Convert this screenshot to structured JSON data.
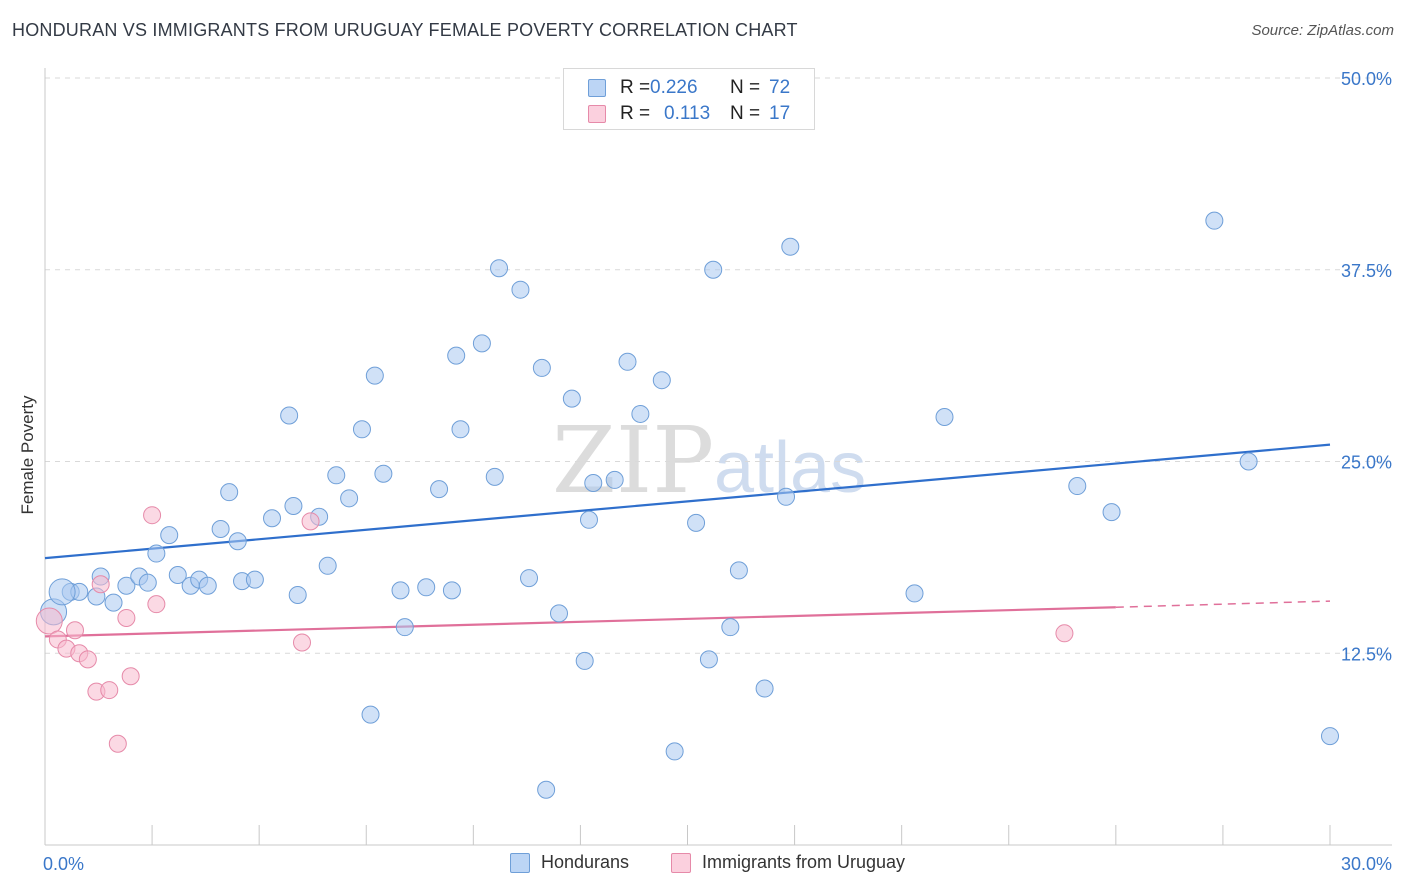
{
  "title": "HONDURAN VS IMMIGRANTS FROM URUGUAY FEMALE POVERTY CORRELATION CHART",
  "source": "Source: ZipAtlas.com",
  "watermark": {
    "zip": "ZIP",
    "atlas": "atlas"
  },
  "legend_top": {
    "rows": [
      {
        "r_label": "R =",
        "r_value": "0.226",
        "n_label": "N =",
        "n_value": "72",
        "color": "#a9c8f0"
      },
      {
        "r_label": "R =",
        "r_value": "0.113",
        "n_label": "N =",
        "n_value": "17",
        "color": "#f7b9ce"
      }
    ]
  },
  "legend_bottom": [
    {
      "label": "Hondurans",
      "color": "#a9c8f0"
    },
    {
      "label": "Immigrants from Uruguay",
      "color": "#f7b9ce"
    }
  ],
  "chart_data": {
    "type": "scatter",
    "title": "HONDURAN VS IMMIGRANTS FROM URUGUAY FEMALE POVERTY CORRELATION CHART",
    "xlabel": "",
    "ylabel": "Female Poverty",
    "xlim": [
      0,
      30
    ],
    "ylim": [
      0,
      50
    ],
    "x_tick_labels": [
      "0.0%",
      "30.0%"
    ],
    "y_ticks": [
      12.5,
      25.0,
      37.5,
      50.0
    ],
    "y_tick_labels": [
      "12.5%",
      "25.0%",
      "37.5%",
      "50.0%"
    ],
    "grid": true,
    "series": [
      {
        "name": "Hondurans",
        "color": "#a9c8f0",
        "stroke": "#6f9fd8",
        "trend": {
          "x": [
            0,
            30
          ],
          "y": [
            18.7,
            26.1
          ],
          "color": "#2f6fcc"
        },
        "points": [
          [
            0.2,
            15.2
          ],
          [
            0.6,
            16.5
          ],
          [
            0.8,
            16.5
          ],
          [
            1.2,
            16.2
          ],
          [
            1.3,
            17.5
          ],
          [
            1.6,
            15.8
          ],
          [
            1.9,
            16.9
          ],
          [
            2.2,
            17.5
          ],
          [
            2.4,
            17.1
          ],
          [
            2.6,
            19.0
          ],
          [
            2.9,
            20.2
          ],
          [
            3.1,
            17.6
          ],
          [
            3.4,
            16.9
          ],
          [
            3.6,
            17.3
          ],
          [
            3.8,
            16.9
          ],
          [
            4.1,
            20.6
          ],
          [
            4.3,
            23.0
          ],
          [
            4.5,
            19.8
          ],
          [
            4.6,
            17.2
          ],
          [
            4.9,
            17.3
          ],
          [
            5.3,
            21.3
          ],
          [
            5.7,
            28.0
          ],
          [
            5.8,
            22.1
          ],
          [
            5.9,
            16.3
          ],
          [
            6.4,
            21.4
          ],
          [
            6.6,
            18.2
          ],
          [
            6.8,
            24.1
          ],
          [
            7.1,
            22.6
          ],
          [
            7.4,
            27.1
          ],
          [
            7.6,
            8.5
          ],
          [
            7.7,
            30.6
          ],
          [
            7.9,
            24.2
          ],
          [
            8.3,
            16.6
          ],
          [
            8.4,
            14.2
          ],
          [
            8.9,
            16.8
          ],
          [
            9.2,
            23.2
          ],
          [
            9.5,
            16.6
          ],
          [
            9.6,
            31.9
          ],
          [
            9.7,
            27.1
          ],
          [
            10.2,
            32.7
          ],
          [
            10.5,
            24.0
          ],
          [
            10.6,
            37.6
          ],
          [
            11.1,
            36.2
          ],
          [
            11.3,
            17.4
          ],
          [
            11.6,
            31.1
          ],
          [
            11.7,
            3.6
          ],
          [
            12.0,
            15.1
          ],
          [
            12.3,
            29.1
          ],
          [
            12.6,
            12.0
          ],
          [
            12.7,
            21.2
          ],
          [
            12.8,
            23.6
          ],
          [
            13.3,
            23.8
          ],
          [
            13.6,
            31.5
          ],
          [
            13.9,
            28.1
          ],
          [
            14.4,
            30.3
          ],
          [
            14.7,
            6.1
          ],
          [
            15.2,
            21.0
          ],
          [
            15.5,
            12.1
          ],
          [
            15.6,
            37.5
          ],
          [
            16.0,
            14.2
          ],
          [
            16.2,
            17.9
          ],
          [
            16.8,
            10.2
          ],
          [
            17.3,
            22.7
          ],
          [
            17.4,
            39.0
          ],
          [
            20.3,
            16.4
          ],
          [
            21.0,
            27.9
          ],
          [
            24.1,
            23.4
          ],
          [
            24.9,
            21.7
          ],
          [
            27.3,
            40.7
          ],
          [
            28.1,
            25.0
          ],
          [
            30.0,
            7.1
          ],
          [
            0.4,
            16.5
          ]
        ]
      },
      {
        "name": "Immigrants from Uruguay",
        "color": "#f7b9ce",
        "stroke": "#e68aa9",
        "trend": {
          "x": [
            0,
            25
          ],
          "y": [
            13.6,
            15.5
          ],
          "x_dashed_to": 30,
          "y_dashed_to": 15.9,
          "color": "#e0709a"
        },
        "points": [
          [
            0.1,
            14.6
          ],
          [
            0.3,
            13.4
          ],
          [
            0.5,
            12.8
          ],
          [
            0.7,
            14.0
          ],
          [
            0.8,
            12.5
          ],
          [
            1.0,
            12.1
          ],
          [
            1.2,
            10.0
          ],
          [
            1.3,
            17.0
          ],
          [
            1.5,
            10.1
          ],
          [
            1.7,
            6.6
          ],
          [
            1.9,
            14.8
          ],
          [
            2.0,
            11.0
          ],
          [
            2.5,
            21.5
          ],
          [
            2.6,
            15.7
          ],
          [
            6.0,
            13.2
          ],
          [
            6.2,
            21.1
          ],
          [
            23.8,
            13.8
          ]
        ]
      }
    ]
  }
}
